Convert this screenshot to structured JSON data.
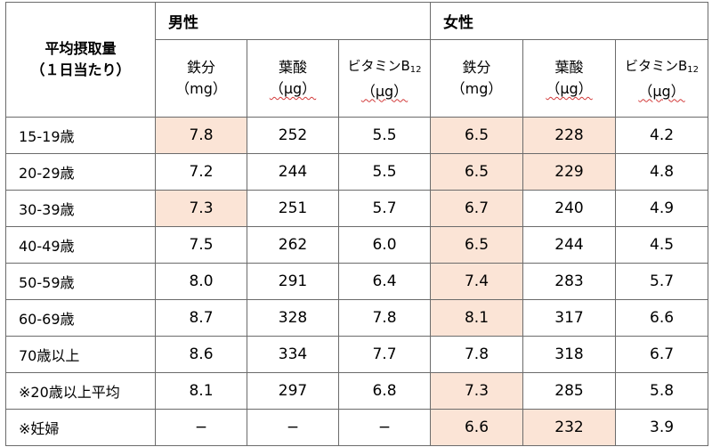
{
  "corner_label": [
    "平均摂取量",
    "（１日当たり）"
  ],
  "groups": [
    {
      "label": "男性"
    },
    {
      "label": "女性"
    }
  ],
  "nutrients": [
    {
      "name": "鉄分",
      "sub": "",
      "unit": "（mg）",
      "unit_wavy": false
    },
    {
      "name": "葉酸",
      "sub": "",
      "unit": "（µg）",
      "unit_wavy": true
    },
    {
      "name": "ビタミンB",
      "sub": "12",
      "unit": "（µg）",
      "unit_wavy": true
    },
    {
      "name": "鉄分",
      "sub": "",
      "unit": "（mg）",
      "unit_wavy": false
    },
    {
      "name": "葉酸",
      "sub": "",
      "unit": "（µg）",
      "unit_wavy": true
    },
    {
      "name": "ビタミンB",
      "sub": "12",
      "unit": "（µg）",
      "unit_wavy": true
    }
  ],
  "highlight_color": "#fbe4d6",
  "rows": [
    {
      "label": "15-19歳",
      "values": [
        "7.8",
        "252",
        "5.5",
        "6.5",
        "228",
        "4.2"
      ],
      "highlight": [
        true,
        false,
        false,
        true,
        true,
        false
      ]
    },
    {
      "label": "20-29歳",
      "values": [
        "7.2",
        "244",
        "5.5",
        "6.5",
        "229",
        "4.8"
      ],
      "highlight": [
        false,
        false,
        false,
        true,
        true,
        false
      ]
    },
    {
      "label": "30-39歳",
      "values": [
        "7.3",
        "251",
        "5.7",
        "6.7",
        "240",
        "4.9"
      ],
      "highlight": [
        true,
        false,
        false,
        true,
        false,
        false
      ]
    },
    {
      "label": "40-49歳",
      "values": [
        "7.5",
        "262",
        "6.0",
        "6.5",
        "244",
        "4.5"
      ],
      "highlight": [
        false,
        false,
        false,
        true,
        false,
        false
      ]
    },
    {
      "label": "50-59歳",
      "values": [
        "8.0",
        "291",
        "6.4",
        "7.4",
        "283",
        "5.7"
      ],
      "highlight": [
        false,
        false,
        false,
        true,
        false,
        false
      ]
    },
    {
      "label": "60-69歳",
      "values": [
        "8.7",
        "328",
        "7.8",
        "8.1",
        "317",
        "6.6"
      ],
      "highlight": [
        false,
        false,
        false,
        true,
        false,
        false
      ]
    },
    {
      "label": "70歳以上",
      "values": [
        "8.6",
        "334",
        "7.7",
        "7.8",
        "318",
        "6.7"
      ],
      "highlight": [
        false,
        false,
        false,
        false,
        false,
        false
      ]
    },
    {
      "label": "※20歳以上平均",
      "values": [
        "8.1",
        "297",
        "6.8",
        "7.3",
        "285",
        "5.8"
      ],
      "highlight": [
        false,
        false,
        false,
        true,
        false,
        false
      ]
    },
    {
      "label": "※妊婦",
      "values": [
        "−",
        "−",
        "−",
        "6.6",
        "232",
        "3.9"
      ],
      "highlight": [
        false,
        false,
        false,
        true,
        true,
        false
      ]
    }
  ]
}
